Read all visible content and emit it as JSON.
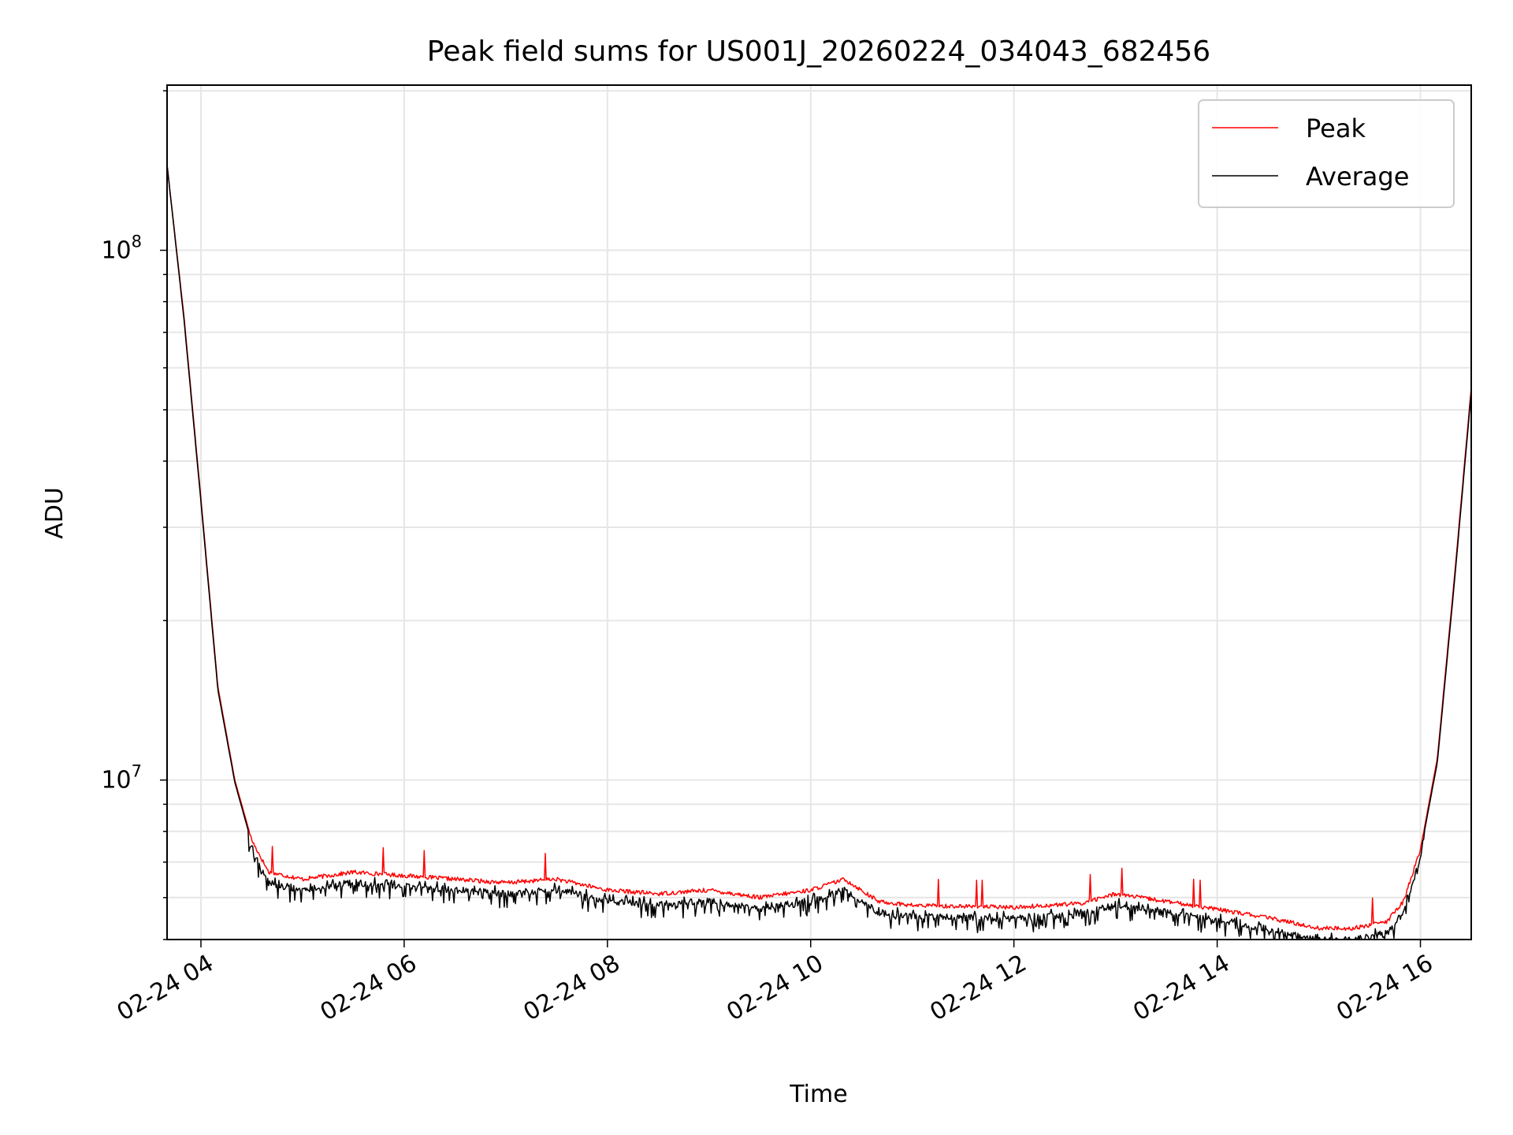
{
  "chart_data": {
    "type": "line",
    "title": "Peak field sums for US001J_20260224_034043_682456",
    "xlabel": "Time",
    "ylabel": "ADU",
    "yscale": "log",
    "ylim": [
      5000000,
      205000000
    ],
    "xlim": [
      "2026-02-24 03:40",
      "2026-02-24 16:30"
    ],
    "x_ticks": [
      {
        "t": "2026-02-24 04:00",
        "label": "02-24 04"
      },
      {
        "t": "2026-02-24 06:00",
        "label": "02-24 06"
      },
      {
        "t": "2026-02-24 08:00",
        "label": "02-24 08"
      },
      {
        "t": "2026-02-24 10:00",
        "label": "02-24 10"
      },
      {
        "t": "2026-02-24 12:00",
        "label": "02-24 12"
      },
      {
        "t": "2026-02-24 14:00",
        "label": "02-24 14"
      },
      {
        "t": "2026-02-24 16:00",
        "label": "02-24 16"
      }
    ],
    "y_major_ticks": [
      {
        "value": 10000000,
        "base": "10",
        "exp": "7"
      },
      {
        "value": 100000000,
        "base": "10",
        "exp": "8"
      }
    ],
    "grid": true,
    "legend": "top-right",
    "series": [
      {
        "name": "Peak",
        "color": "#ff0000",
        "x": [
          "2026-02-24 03:40",
          "2026-02-24 03:50",
          "2026-02-24 04:00",
          "2026-02-24 04:10",
          "2026-02-24 04:20",
          "2026-02-24 04:30",
          "2026-02-24 04:40",
          "2026-02-24 05:00",
          "2026-02-24 05:30",
          "2026-02-24 06:00",
          "2026-02-24 06:30",
          "2026-02-24 07:00",
          "2026-02-24 07:30",
          "2026-02-24 08:00",
          "2026-02-24 08:30",
          "2026-02-24 09:00",
          "2026-02-24 09:30",
          "2026-02-24 10:00",
          "2026-02-24 10:20",
          "2026-02-24 10:40",
          "2026-02-24 11:00",
          "2026-02-24 12:00",
          "2026-02-24 12:40",
          "2026-02-24 13:00",
          "2026-02-24 13:30",
          "2026-02-24 14:00",
          "2026-02-24 14:30",
          "2026-02-24 15:00",
          "2026-02-24 15:20",
          "2026-02-24 15:40",
          "2026-02-24 15:50",
          "2026-02-24 16:00",
          "2026-02-24 16:10",
          "2026-02-24 16:20",
          "2026-02-24 16:30"
        ],
        "y": [
          145000000,
          75000000,
          34000000,
          15000000,
          10000000,
          7700000,
          6700000,
          6500000,
          6700000,
          6600000,
          6500000,
          6400000,
          6500000,
          6200000,
          6100000,
          6200000,
          6000000,
          6200000,
          6500000,
          5900000,
          5800000,
          5750000,
          5850000,
          6100000,
          5900000,
          5700000,
          5500000,
          5250000,
          5250000,
          5400000,
          5900000,
          7400000,
          11000000,
          24000000,
          55000000
        ]
      },
      {
        "name": "Average",
        "color": "#000000",
        "x": [
          "2026-02-24 03:40",
          "2026-02-24 03:50",
          "2026-02-24 04:00",
          "2026-02-24 04:10",
          "2026-02-24 04:20",
          "2026-02-24 04:30",
          "2026-02-24 04:40",
          "2026-02-24 05:00",
          "2026-02-24 05:30",
          "2026-02-24 06:00",
          "2026-02-24 06:30",
          "2026-02-24 07:00",
          "2026-02-24 07:30",
          "2026-02-24 08:00",
          "2026-02-24 08:30",
          "2026-02-24 09:00",
          "2026-02-24 09:30",
          "2026-02-24 10:00",
          "2026-02-24 10:20",
          "2026-02-24 10:40",
          "2026-02-24 11:00",
          "2026-02-24 12:00",
          "2026-02-24 12:40",
          "2026-02-24 13:00",
          "2026-02-24 13:30",
          "2026-02-24 14:00",
          "2026-02-24 14:30",
          "2026-02-24 15:00",
          "2026-02-24 15:20",
          "2026-02-24 15:40",
          "2026-02-24 15:50",
          "2026-02-24 16:00",
          "2026-02-24 16:10",
          "2026-02-24 16:20",
          "2026-02-24 16:30"
        ],
        "y": [
          145000000,
          74000000,
          33500000,
          14800000,
          9900000,
          7600000,
          6600000,
          6400000,
          6600000,
          6500000,
          6400000,
          6300000,
          6400000,
          6100000,
          6000000,
          6100000,
          5900000,
          6100000,
          6400000,
          5800000,
          5700000,
          5650000,
          5750000,
          6000000,
          5800000,
          5600000,
          5400000,
          5150000,
          5150000,
          5300000,
          5800000,
          7300000,
          10800000,
          23500000,
          54000000
        ]
      }
    ]
  }
}
